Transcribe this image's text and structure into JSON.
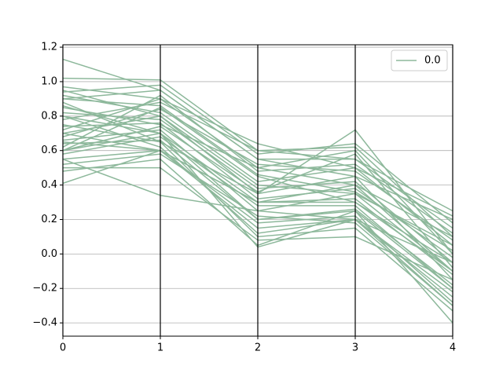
{
  "chart_data": {
    "type": "parallel",
    "x": [
      0,
      1,
      2,
      3,
      4
    ],
    "xlim": [
      0,
      4
    ],
    "xticks": [
      0,
      1,
      2,
      3,
      4
    ],
    "ylim": [
      -0.477,
      1.214
    ],
    "yticks": [
      {
        "value": -0.4,
        "label": "−0.4"
      },
      {
        "value": -0.2,
        "label": "−0.2"
      },
      {
        "value": 0,
        "label": "0.0"
      },
      0.2,
      0.4,
      0.6,
      0.8,
      {
        "value": 1,
        "label": "1.0"
      },
      1.2
    ],
    "grid": true,
    "legend": "upper right",
    "series": [
      {
        "name": "0.0",
        "color": "#8db89b",
        "values": [
          [
            1.13,
            0.95,
            0.55,
            0.45,
            0.2
          ],
          [
            1.02,
            1.01,
            0.6,
            0.55,
            0.25
          ],
          [
            0.41,
            0.6,
            0.3,
            0.4,
            -0.1
          ],
          [
            0.55,
            0.34,
            0.25,
            0.2,
            -0.05
          ],
          [
            0.48,
            0.55,
            0.05,
            0.25,
            -0.4
          ],
          [
            0.5,
            0.5,
            0.08,
            0.1,
            -0.15
          ],
          [
            0.97,
            0.9,
            0.64,
            0.5,
            0.22
          ],
          [
            0.6,
            0.7,
            0.04,
            0.2,
            -0.3
          ],
          [
            0.95,
            0.8,
            0.35,
            0.72,
            0.0
          ],
          [
            0.75,
            0.65,
            0.1,
            0.15,
            -0.33
          ],
          [
            0.7,
            0.8,
            0.4,
            0.35,
            0.05
          ],
          [
            0.85,
            0.75,
            0.5,
            0.4,
            0.1
          ],
          [
            0.65,
            0.6,
            0.3,
            0.3,
            -0.1
          ],
          [
            0.9,
            0.95,
            0.55,
            0.55,
            0.15
          ],
          [
            0.6,
            0.85,
            0.45,
            0.3,
            -0.05
          ],
          [
            0.8,
            0.7,
            0.2,
            0.25,
            -0.2
          ],
          [
            0.55,
            0.6,
            0.15,
            0.2,
            -0.25
          ],
          [
            0.72,
            0.9,
            0.5,
            0.6,
            0.0
          ],
          [
            0.88,
            0.65,
            0.35,
            0.45,
            -0.15
          ],
          [
            0.66,
            0.72,
            0.25,
            0.35,
            -0.1
          ],
          [
            0.78,
            0.88,
            0.6,
            0.62,
            0.1
          ],
          [
            0.92,
            0.82,
            0.42,
            0.5,
            0.05
          ],
          [
            0.58,
            0.68,
            0.28,
            0.28,
            -0.2
          ],
          [
            0.82,
            0.78,
            0.38,
            0.42,
            -0.05
          ],
          [
            0.7,
            0.6,
            0.18,
            0.22,
            -0.28
          ],
          [
            0.62,
            0.92,
            0.48,
            0.52,
            0.12
          ],
          [
            0.86,
            0.7,
            0.3,
            0.32,
            -0.12
          ],
          [
            0.52,
            0.58,
            0.22,
            0.18,
            -0.3
          ],
          [
            0.94,
            0.98,
            0.58,
            0.64,
            0.18
          ],
          [
            0.74,
            0.76,
            0.32,
            0.38,
            -0.02
          ],
          [
            0.68,
            0.84,
            0.52,
            0.48,
            0.08
          ],
          [
            0.8,
            0.62,
            0.12,
            0.2,
            -0.22
          ],
          [
            0.6,
            0.74,
            0.36,
            0.58,
            -0.08
          ],
          [
            0.9,
            0.86,
            0.46,
            0.36,
            0.02
          ],
          [
            0.64,
            0.66,
            0.2,
            0.26,
            -0.18
          ]
        ]
      }
    ]
  }
}
